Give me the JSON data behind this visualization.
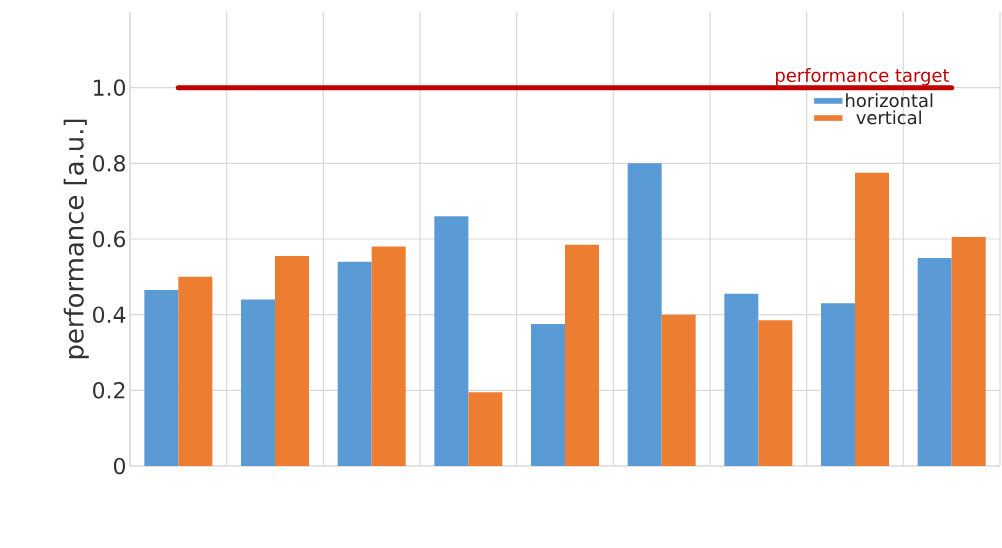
{
  "chart_data": {
    "type": "bar",
    "ylabel": "performance  [a.u.]",
    "categories": [
      null,
      null,
      null,
      null,
      null,
      null,
      null,
      null,
      null
    ],
    "series": [
      {
        "name": "horizontal",
        "color": "#5b9bd5",
        "values": [
          0.465,
          0.44,
          0.54,
          0.66,
          0.375,
          0.8,
          0.455,
          0.43,
          0.55
        ]
      },
      {
        "name": "vertical",
        "color": "#ed7d31",
        "values": [
          0.5,
          0.555,
          0.58,
          0.195,
          0.585,
          0.4,
          0.385,
          0.775,
          0.605
        ]
      }
    ],
    "ylim": [
      0,
      1.2
    ],
    "yticks": [
      0,
      0.2,
      0.4,
      0.6,
      0.8,
      {
        "value": 1,
        "label": "1.0"
      }
    ],
    "ref_lines": [
      {
        "axis": "y",
        "value": 1,
        "label": "performance target",
        "color": "#c00000"
      }
    ],
    "grid": true,
    "legend": "top right",
    "tick_labels": "y"
  }
}
